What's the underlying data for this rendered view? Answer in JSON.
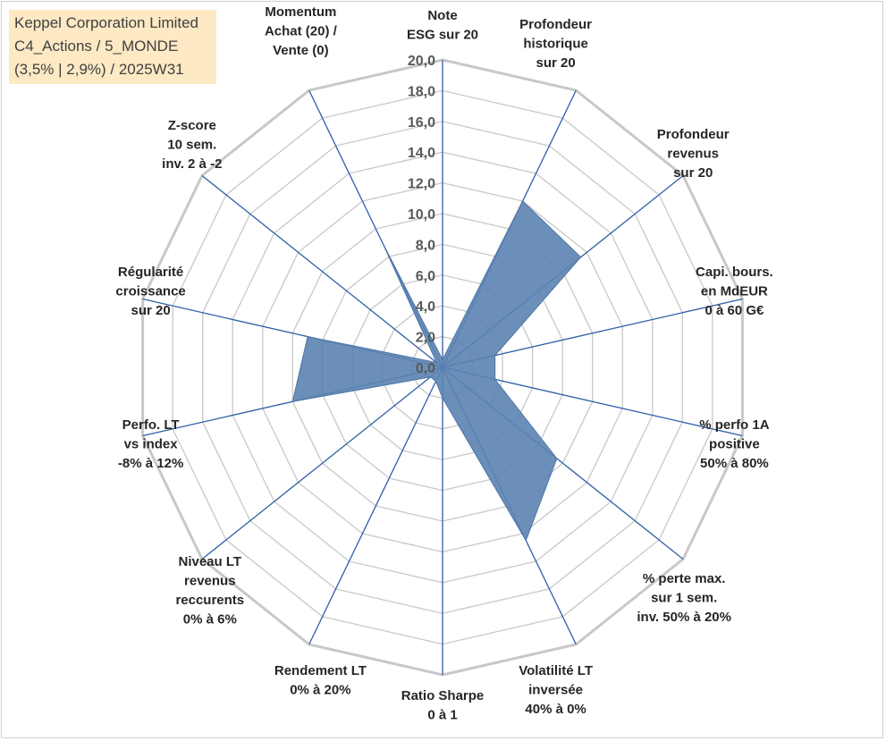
{
  "title_box": {
    "line1": "Keppel Corporation Limited",
    "line2": "C4_Actions / 5_MONDE",
    "line3": "(3,5% | 2,9%) / 2025W31"
  },
  "chart_data": {
    "type": "radar",
    "axis_range": [
      0,
      20
    ],
    "tick_step": 2,
    "tick_labels": [
      "0,0",
      "2,0",
      "4,0",
      "6,0",
      "8,0",
      "10,0",
      "12,0",
      "14,0",
      "16,0",
      "18,0",
      "20,0"
    ],
    "axes": [
      [
        "Note",
        "ESG sur 20"
      ],
      [
        "Profondeur",
        "historique",
        "sur 20"
      ],
      [
        "Profondeur",
        "revenus",
        "sur 20"
      ],
      [
        "Capi. bours.",
        "en MdEUR",
        "0 à 60 G€"
      ],
      [
        "% perfo 1A",
        "positive",
        "50% à 80%"
      ],
      [
        "% perte max.",
        "sur 1 sem.",
        "inv. 50% à 20%"
      ],
      [
        "Volatilité LT",
        "inversée",
        "40% à 0%"
      ],
      [
        "Ratio Sharpe",
        "0 à 1"
      ],
      [
        "Rendement LT",
        "0% à 20%"
      ],
      [
        "Niveau LT",
        "revenus",
        "reccurents",
        "0% à 6%"
      ],
      [
        "Perfo. LT",
        "vs index",
        "-8% à 12%"
      ],
      [
        "Régularité",
        "croissance",
        "sur 20"
      ],
      [
        "Z-score",
        "10 sem.",
        "inv. 2 à -2"
      ],
      [
        "Momentum",
        "Achat (20) /",
        "Vente (0)"
      ]
    ],
    "values": [
      0.5,
      12.0,
      11.5,
      3.5,
      3.5,
      9.5,
      12.5,
      2.0,
      1.0,
      1.0,
      10.0,
      9.0,
      0.5,
      9.0
    ],
    "series_color": "#5b83b1",
    "grid_color": "#c8c8c8",
    "axis_color": "#2f5ea8"
  }
}
